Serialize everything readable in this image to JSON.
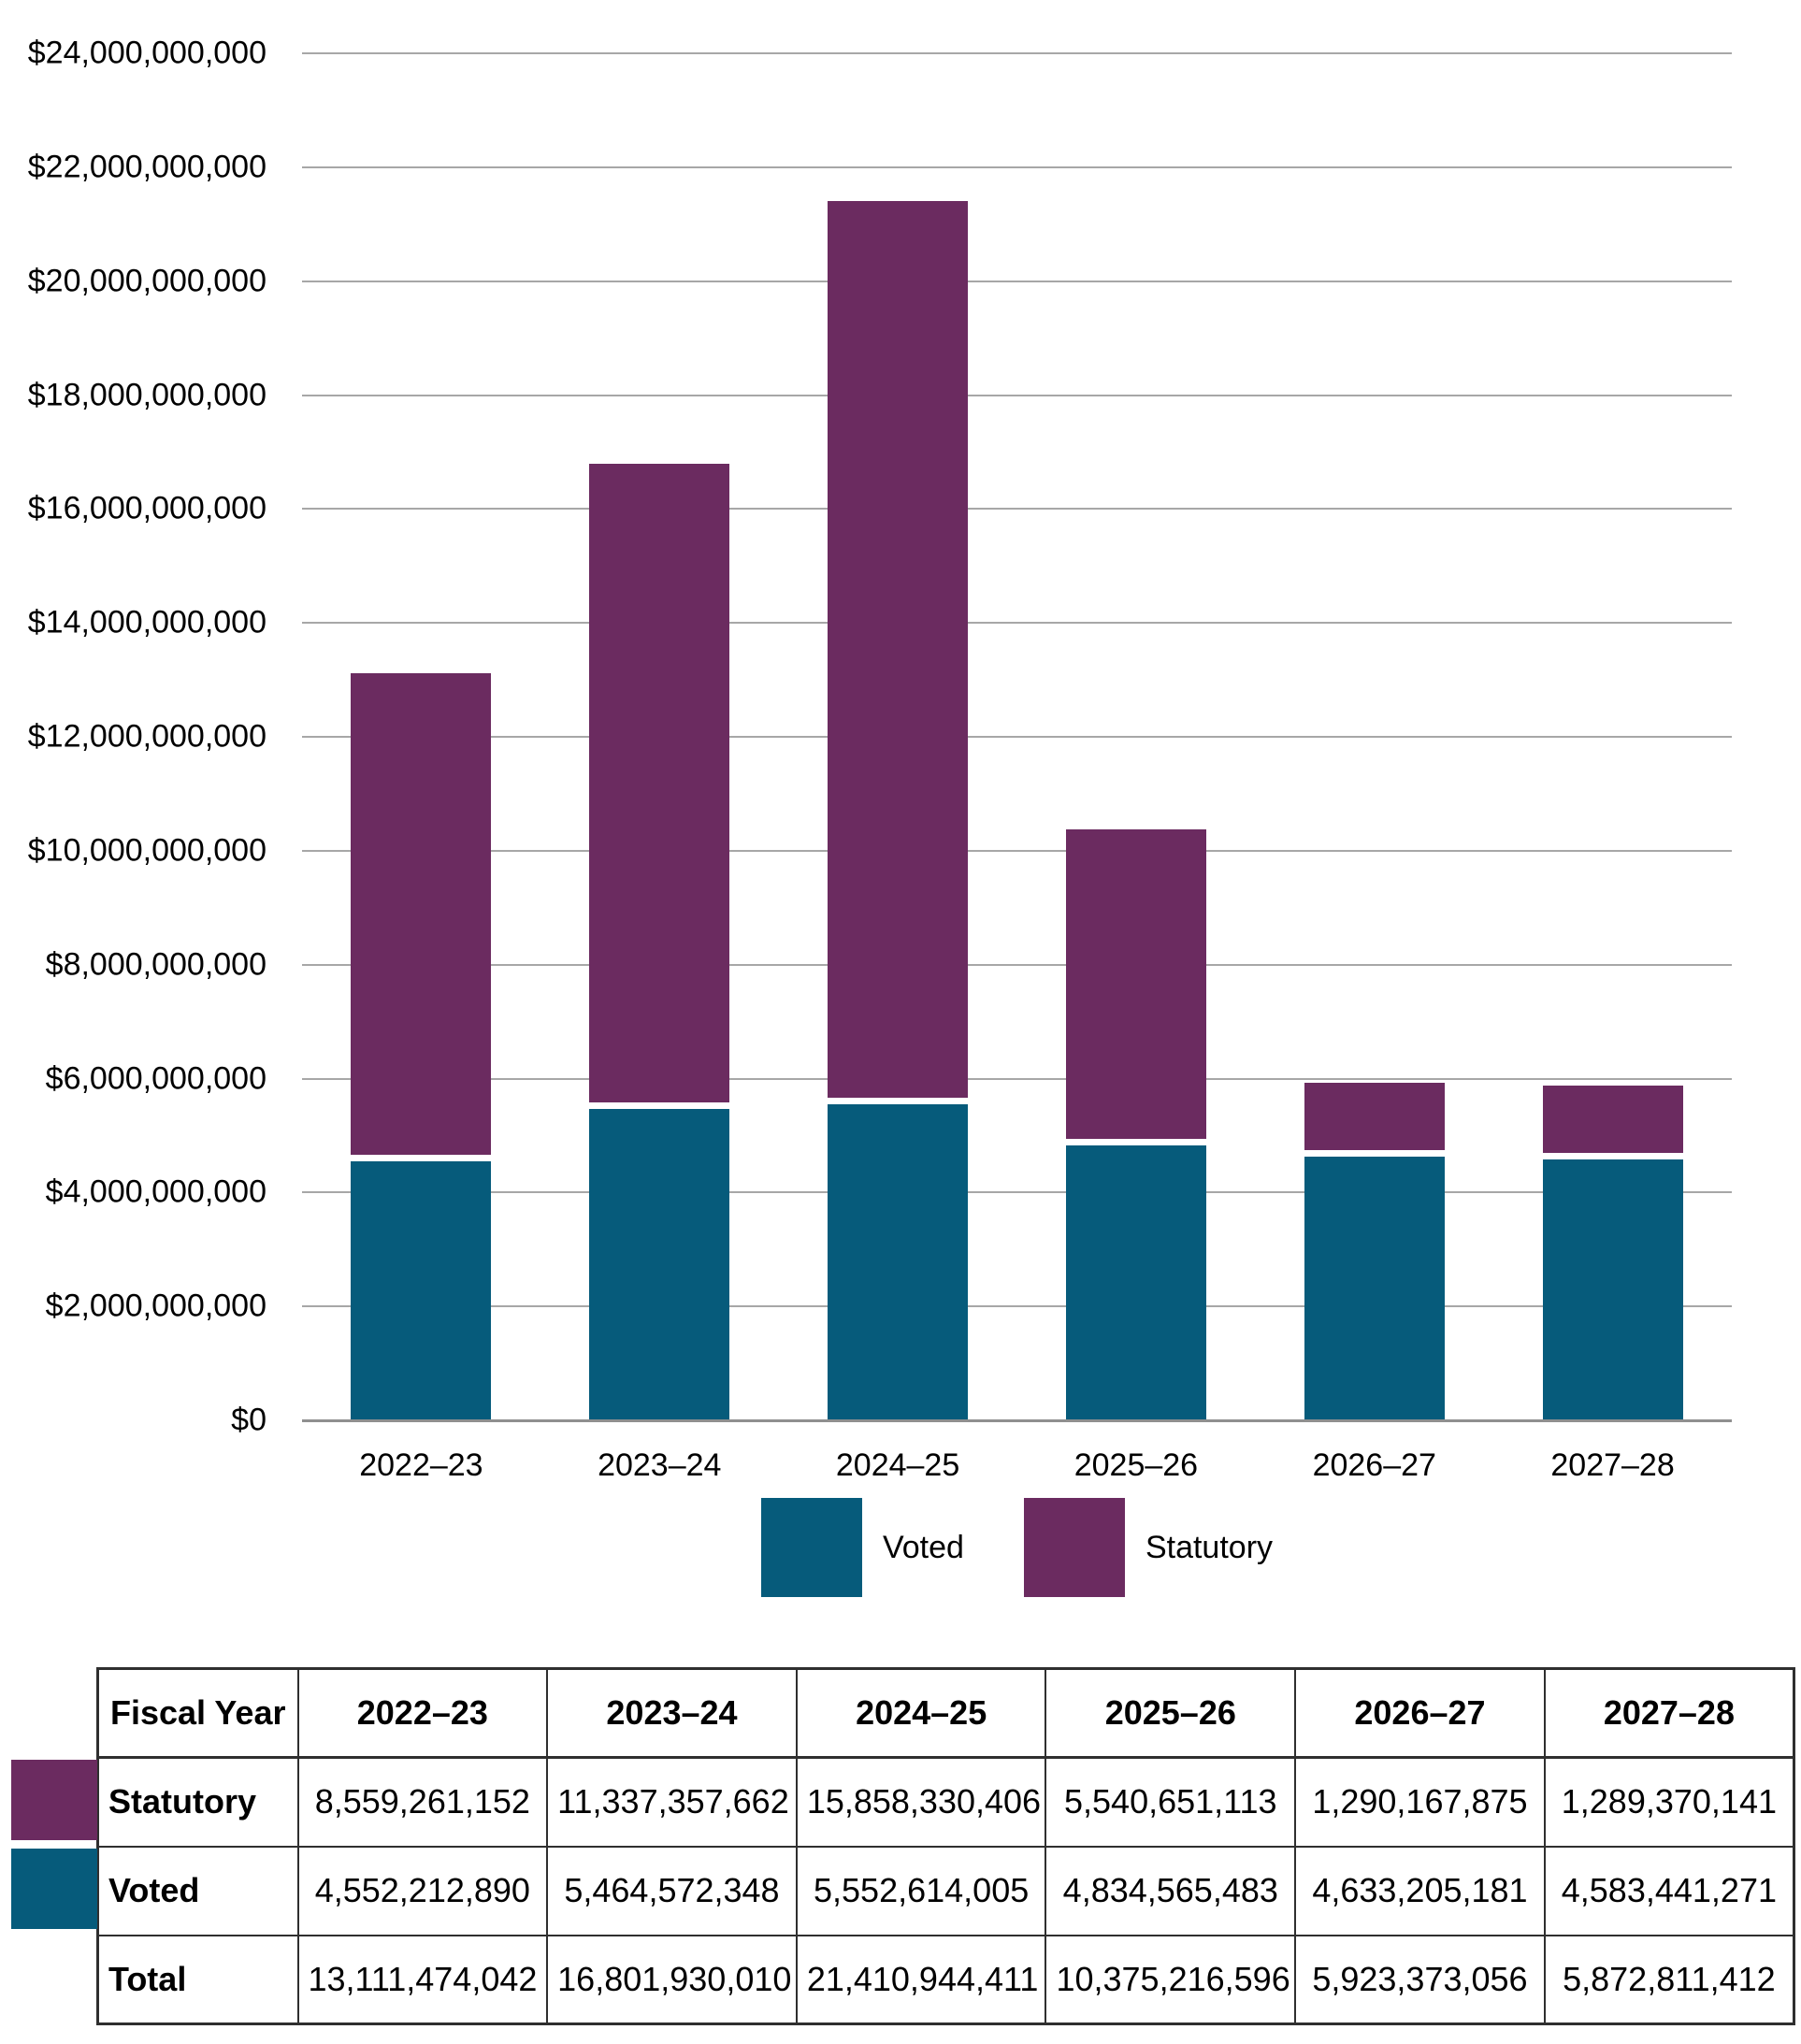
{
  "colors": {
    "voted": "#065b7b",
    "statutory": "#6b2b60",
    "gridline": "#a7a7a7"
  },
  "chart_data": {
    "type": "bar",
    "stacked": true,
    "title": "",
    "xlabel": "",
    "ylabel": "",
    "grid": true,
    "legend_position": "bottom",
    "ylim": [
      0,
      24000000000
    ],
    "ytick_step": 2000000000,
    "categories": [
      "2022–23",
      "2023–24",
      "2024–25",
      "2025–26",
      "2026–27",
      "2027–28"
    ],
    "series": [
      {
        "name": "Voted",
        "color_key": "voted",
        "values": [
          4552212890,
          5464572348,
          5552614005,
          4834565483,
          4633205181,
          4583441271
        ]
      },
      {
        "name": "Statutory",
        "color_key": "statutory",
        "values": [
          8559261152,
          11337357662,
          15858330406,
          5540651113,
          1290167875,
          1289370141
        ]
      }
    ],
    "totals": [
      13111474042,
      16801930010,
      21410944411,
      10375216596,
      5923373056,
      5872811412
    ],
    "yticks": [
      {
        "value": 0,
        "label": "$0"
      },
      {
        "value": 2000000000,
        "label": "$2,000,000,000"
      },
      {
        "value": 4000000000,
        "label": "$4,000,000,000"
      },
      {
        "value": 6000000000,
        "label": "$6,000,000,000"
      },
      {
        "value": 8000000000,
        "label": "$8,000,000,000"
      },
      {
        "value": 10000000000,
        "label": "$10,000,000,000"
      },
      {
        "value": 12000000000,
        "label": "$12,000,000,000"
      },
      {
        "value": 14000000000,
        "label": "$14,000,000,000"
      },
      {
        "value": 16000000000,
        "label": "$16,000,000,000"
      },
      {
        "value": 18000000000,
        "label": "$18,000,000,000"
      },
      {
        "value": 20000000000,
        "label": "$20,000,000,000"
      },
      {
        "value": 22000000000,
        "label": "$22,000,000,000"
      },
      {
        "value": 24000000000,
        "label": "$24,000,000,000"
      }
    ]
  },
  "legend": {
    "items": [
      {
        "label": "Voted",
        "color_key": "voted"
      },
      {
        "label": "Statutory",
        "color_key": "statutory"
      }
    ]
  },
  "table": {
    "header": [
      "Fiscal Year",
      "2022–23",
      "2023–24",
      "2024–25",
      "2025–26",
      "2026–27",
      "2027–28"
    ],
    "rows": [
      {
        "label": "Statutory",
        "swatch": "statutory",
        "values": [
          "8,559,261,152",
          "11,337,357,662",
          "15,858,330,406",
          "5,540,651,113",
          "1,290,167,875",
          "1,289,370,141"
        ]
      },
      {
        "label": "Voted",
        "swatch": "voted",
        "values": [
          "4,552,212,890",
          "5,464,572,348",
          "5,552,614,005",
          "4,834,565,483",
          "4,633,205,181",
          "4,583,441,271"
        ]
      },
      {
        "label": "Total",
        "swatch": null,
        "values": [
          "13,111,474,042",
          "16,801,930,010",
          "21,410,944,411",
          "10,375,216,596",
          "5,923,373,056",
          "5,872,811,412"
        ]
      }
    ]
  }
}
